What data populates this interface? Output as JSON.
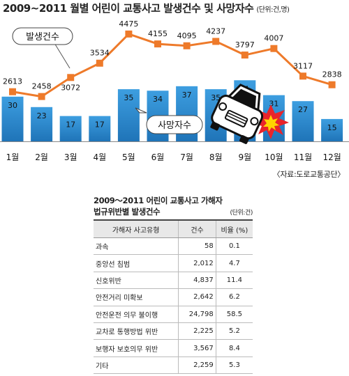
{
  "chart_data": {
    "title": "2009~2011 월별 어린이 교통사고 발생건수 및 사망자수",
    "unit_note": "(단위:건,명)",
    "type": "bar+line",
    "categories": [
      "1월",
      "2월",
      "3월",
      "4월",
      "5월",
      "6월",
      "7월",
      "8월",
      "9월",
      "10월",
      "11월",
      "12월"
    ],
    "series": [
      {
        "name": "발생건수",
        "type": "line",
        "color": "#ee7a2a",
        "values": [
          2613,
          2458,
          3072,
          3534,
          4475,
          4155,
          4095,
          4237,
          3797,
          4007,
          3117,
          2838
        ]
      },
      {
        "name": "사망자수",
        "type": "bar",
        "color": "#2d8fd0",
        "values": [
          30,
          23,
          17,
          17,
          35,
          34,
          37,
          35,
          41,
          31,
          27,
          15
        ]
      }
    ],
    "source": "〈자료:도로교통공단〉"
  },
  "table": {
    "title_line1": "2009～2011 어린이 교통사고 가해자",
    "title_line2": "법규위반별 발생건수",
    "unit": "(단위:건)",
    "headers": [
      "가해자 사고유형",
      "건수",
      "비율 (%)"
    ],
    "rows": [
      [
        "과속",
        "58",
        "0.1"
      ],
      [
        "중앙선 침범",
        "2,012",
        "4.7"
      ],
      [
        "신호위반",
        "4,837",
        "11.4"
      ],
      [
        "안전거리 미확보",
        "2,642",
        "6.2"
      ],
      [
        "안전운전 의무 불이행",
        "24,798",
        "58.5"
      ],
      [
        "교차로 통행방법 위반",
        "2,225",
        "5.2"
      ],
      [
        "보행자 보호의무 위반",
        "3,567",
        "8.4"
      ],
      [
        "기타",
        "2,259",
        "5.3"
      ]
    ]
  }
}
